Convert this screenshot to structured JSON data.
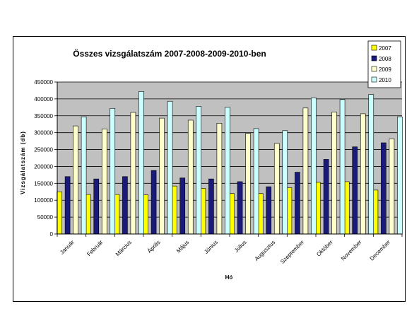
{
  "chart_data": {
    "type": "bar",
    "title": "Összes vizsgálatszám 2007-2008-2009-2010-ben",
    "xlabel": "Hó",
    "ylabel": "Vizsgálatszám (db)",
    "ylim": [
      0,
      450000
    ],
    "yticks": [
      0,
      50000,
      100000,
      150000,
      200000,
      250000,
      300000,
      350000,
      400000,
      450000
    ],
    "grid": true,
    "legend_position": "top-right",
    "categories": [
      "Január",
      "Február",
      "Március",
      "Április",
      "Május",
      "Június",
      "Július",
      "Augusztus",
      "Szeptember",
      "Október",
      "November",
      "December"
    ],
    "series": [
      {
        "name": "2007",
        "color": "#ffff00",
        "values": [
          125000,
          117000,
          117000,
          116000,
          142000,
          135000,
          120000,
          120000,
          137000,
          153000,
          155000,
          130000
        ]
      },
      {
        "name": "2008",
        "color": "#1a1a7a",
        "values": [
          170000,
          163000,
          170000,
          188000,
          166000,
          163000,
          155000,
          140000,
          183000,
          221000,
          258000,
          270000
        ]
      },
      {
        "name": "2009",
        "color": "#ffffcc",
        "values": [
          320000,
          311000,
          360000,
          343000,
          337000,
          328000,
          298000,
          268000,
          373000,
          361000,
          356000,
          282000
        ]
      },
      {
        "name": "2010",
        "color": "#ccffff",
        "values": [
          347000,
          372000,
          422000,
          393000,
          378000,
          375000,
          312000,
          306000,
          403000,
          398000,
          413000,
          347000
        ]
      }
    ]
  }
}
